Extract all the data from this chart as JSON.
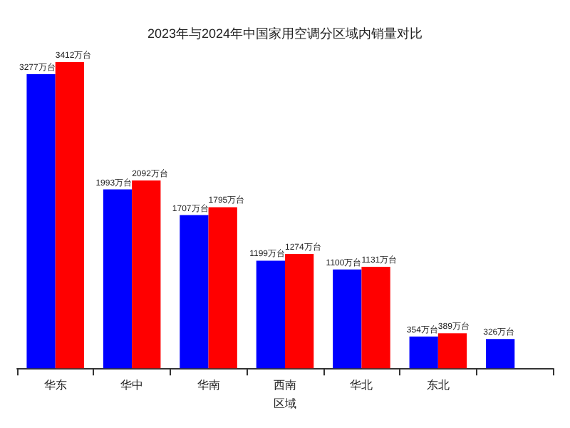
{
  "chart_data": {
    "type": "bar",
    "title": "2023年与2024年中国家用空调分区域内销量对比",
    "xlabel": "区域",
    "categories": [
      "华东",
      "华中",
      "华南",
      "西南",
      "华北",
      "东北",
      null
    ],
    "series": [
      {
        "color": "#0000ff",
        "values": [
          3277,
          1993,
          1707,
          1199,
          1100,
          354,
          326
        ],
        "value_labels": [
          "3277万台",
          "1993万台",
          "1707万台",
          "1199万台",
          "1100万台",
          "354万台",
          "326万台"
        ]
      },
      {
        "color": "#ff0000",
        "values": [
          3412,
          2092,
          1795,
          1274,
          1131,
          389,
          null
        ],
        "value_labels": [
          "3412万台",
          "2092万台",
          "1795万台",
          "1274万台",
          "1131万台",
          "389万台",
          null
        ]
      }
    ]
  }
}
